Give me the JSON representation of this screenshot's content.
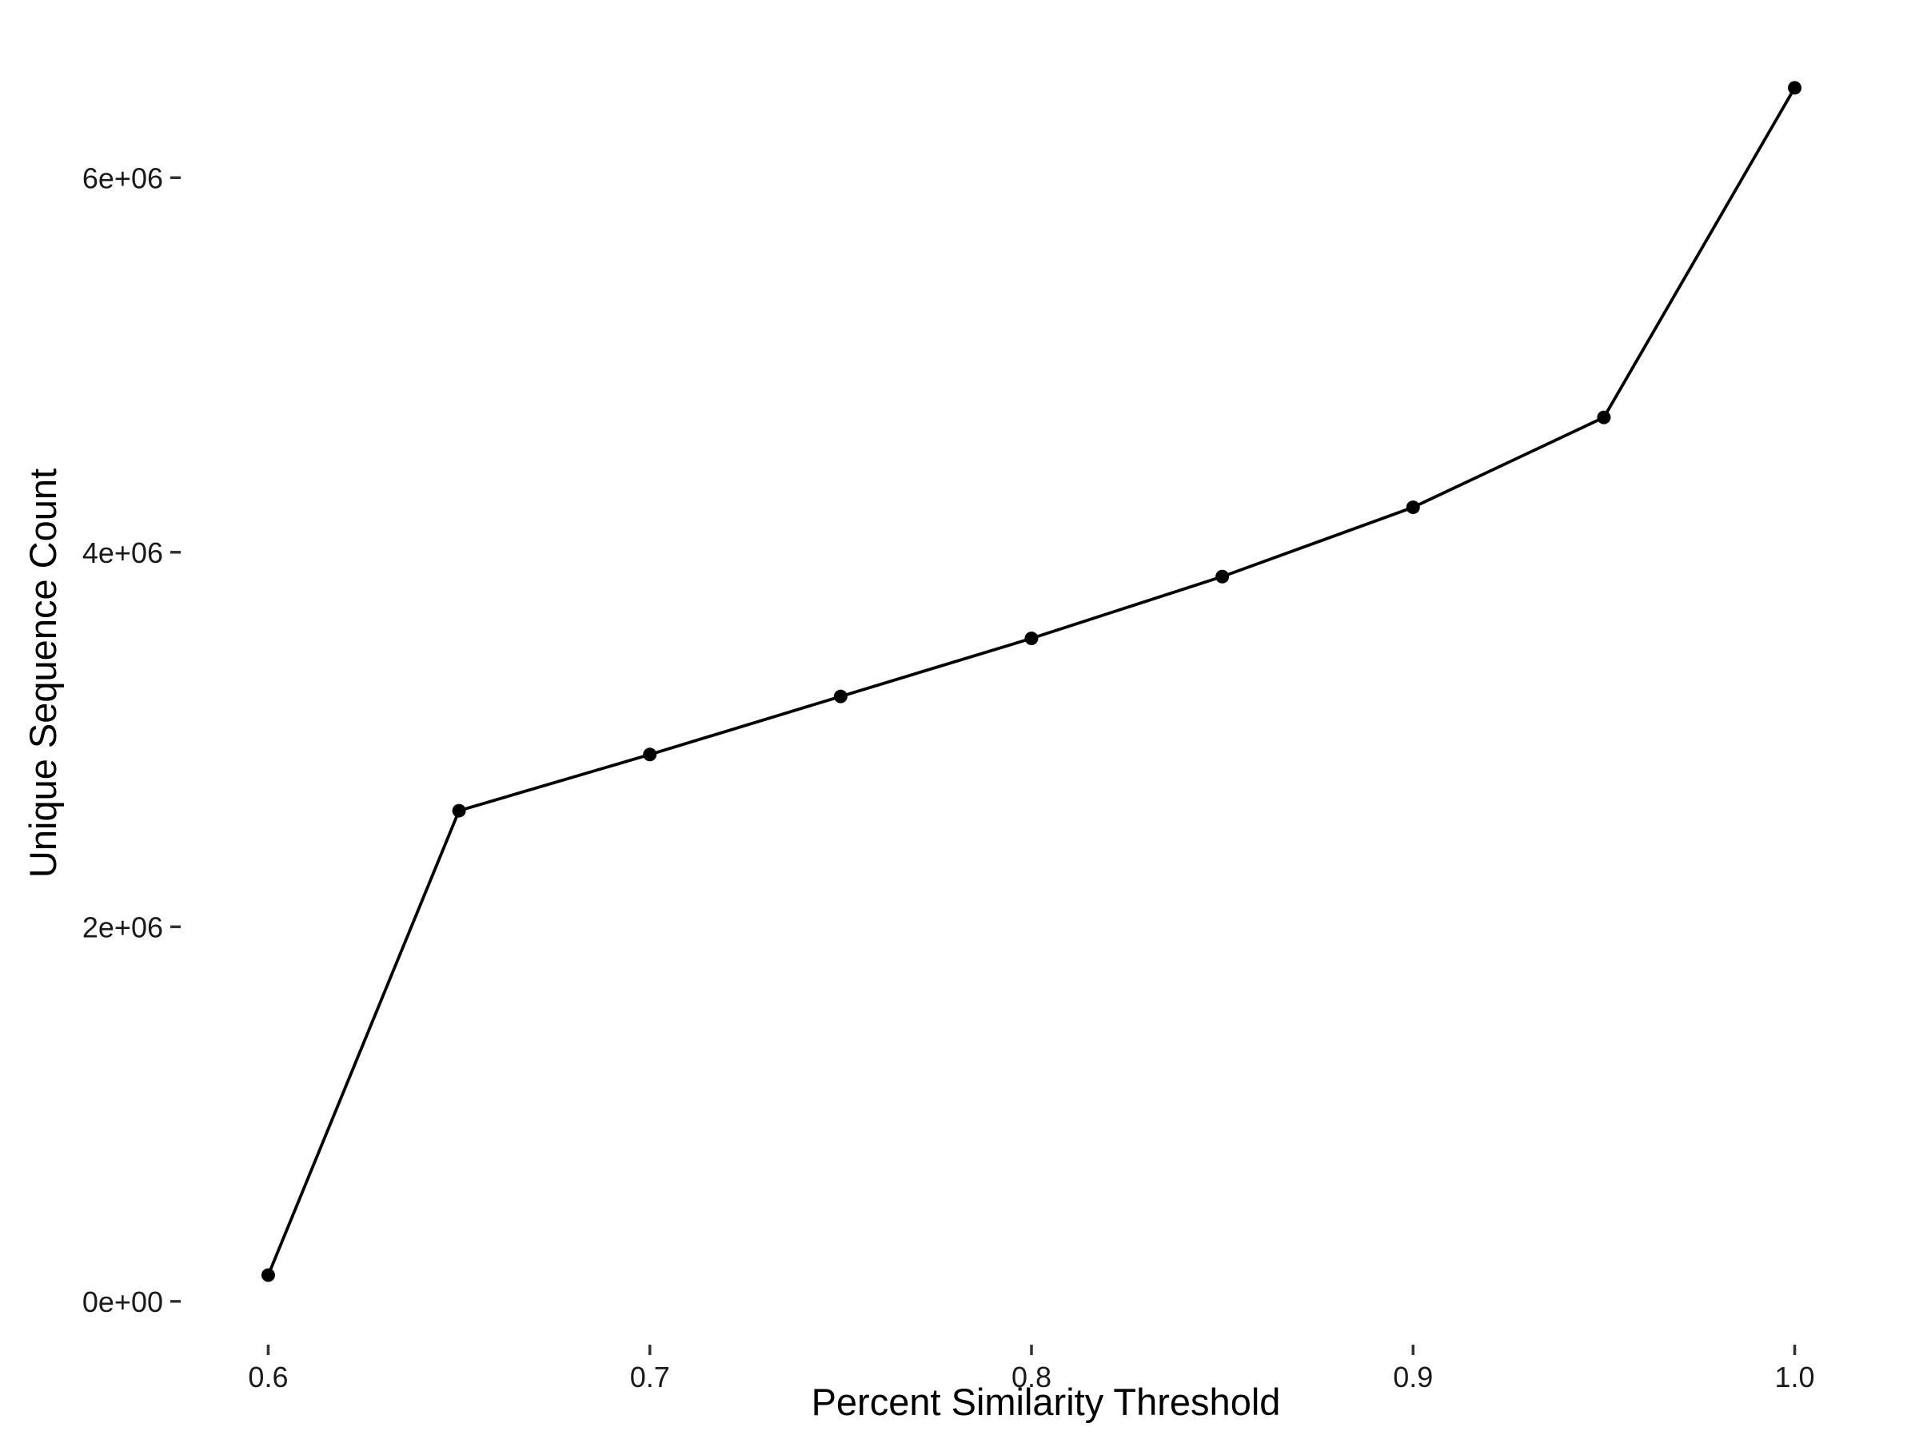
{
  "chart_data": {
    "type": "line",
    "title": "",
    "xlabel": "Percent Similarity Threshold",
    "ylabel": "Unique Sequence Count",
    "x": [
      0.6,
      0.65,
      0.7,
      0.75,
      0.8,
      0.85,
      0.9,
      0.95,
      1.0
    ],
    "series": [
      {
        "values": [
          140000,
          2620000,
          2920000,
          3230000,
          3540000,
          3870000,
          4240000,
          4720000,
          6480000
        ]
      }
    ],
    "xlim": [
      0.58,
      1.02
    ],
    "ylim": [
      -180000,
      6650000
    ],
    "xticks": [
      {
        "value": 0.6,
        "label": "0.6"
      },
      {
        "value": 0.7,
        "label": "0.7"
      },
      {
        "value": 0.8,
        "label": "0.8"
      },
      {
        "value": 0.9,
        "label": "0.9"
      },
      {
        "value": 1.0,
        "label": "1.0"
      }
    ],
    "yticks": [
      {
        "value": 0,
        "label": "0e+00"
      },
      {
        "value": 2000000,
        "label": "2e+06"
      },
      {
        "value": 4000000,
        "label": "4e+06"
      },
      {
        "value": 6000000,
        "label": "6e+06"
      }
    ],
    "grid": false,
    "legend": "none",
    "line_color": "#000000",
    "point_color": "#000000"
  }
}
